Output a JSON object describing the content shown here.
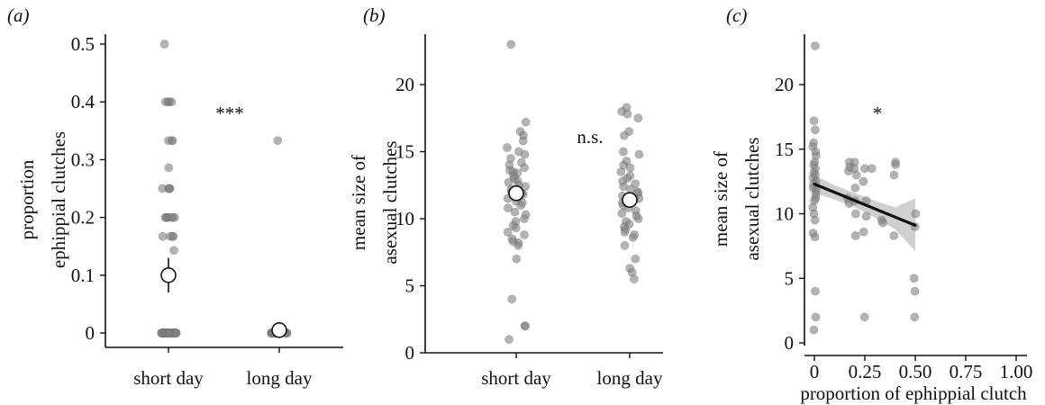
{
  "colors": {
    "point_fill": "#808080",
    "point_opacity": 0.6,
    "mean_fill": "#ffffff",
    "axis": "#111111",
    "regression_line": "#111111",
    "ci_band": "#c8c8c8"
  },
  "chart_data": [
    {
      "panel": "(a)",
      "type": "scatter",
      "jitter": true,
      "categories": [
        "short day",
        "long day"
      ],
      "ylabel": [
        "proportion",
        "ephippial clutches"
      ],
      "yticks": [
        0,
        0.1,
        0.2,
        0.3,
        0.4,
        0.5
      ],
      "ytick_labels": [
        "0",
        "0.1",
        "0.2",
        "0.3",
        "0.4",
        "0.5"
      ],
      "ylim": [
        0,
        0.53
      ],
      "significance": "***",
      "series": [
        {
          "category": "short day",
          "points": [
            0.5,
            0.4,
            0.4,
            0.4,
            0.4,
            0.333,
            0.333,
            0.333,
            0.286,
            0.25,
            0.25,
            0.25,
            0.25,
            0.2,
            0.2,
            0.2,
            0.2,
            0.2,
            0.2,
            0.2,
            0.167,
            0.167,
            0.167,
            0.167,
            0.143,
            0,
            0,
            0,
            0,
            0,
            0,
            0,
            0,
            0,
            0,
            0,
            0,
            0,
            0,
            0,
            0,
            0,
            0,
            0,
            0,
            0,
            0,
            0,
            0,
            0,
            0,
            0,
            0,
            0,
            0
          ],
          "mean": 0.1,
          "se": [
            0.07,
            0.13
          ]
        },
        {
          "category": "long day",
          "points": [
            0.333,
            0,
            0,
            0,
            0,
            0,
            0,
            0,
            0,
            0,
            0,
            0,
            0,
            0,
            0,
            0,
            0,
            0,
            0,
            0,
            0,
            0,
            0,
            0,
            0,
            0,
            0,
            0,
            0,
            0
          ],
          "mean": 0.005,
          "se": [
            0,
            0.01
          ]
        }
      ]
    },
    {
      "panel": "(b)",
      "type": "scatter",
      "jitter": true,
      "categories": [
        "short day",
        "long day"
      ],
      "ylabel": [
        "mean size of",
        "asexual clutches"
      ],
      "yticks": [
        0,
        5,
        10,
        15,
        20
      ],
      "ytick_labels": [
        "0",
        "5",
        "10",
        "15",
        "20"
      ],
      "ylim": [
        0,
        24.5
      ],
      "significance": "n.s.",
      "series": [
        {
          "category": "short day",
          "points": [
            23,
            17.2,
            16.5,
            16.2,
            15.8,
            15.3,
            15,
            14.8,
            14.5,
            14.2,
            14,
            13.8,
            13.6,
            13.5,
            13.4,
            13.2,
            13,
            12.8,
            12.7,
            12.5,
            12.4,
            12.2,
            12,
            11.9,
            11.8,
            11.6,
            11.5,
            11.3,
            11.2,
            11,
            10.8,
            10.5,
            10.3,
            10,
            9.8,
            9.5,
            9.3,
            9,
            8.8,
            8.5,
            8.3,
            8.2,
            8,
            7,
            4,
            2,
            2,
            1
          ],
          "mean": 11.9,
          "se": [
            11.4,
            12.4
          ]
        },
        {
          "category": "long day",
          "points": [
            18.3,
            18,
            17.8,
            17.5,
            16.5,
            16.2,
            15,
            14.8,
            14.3,
            14,
            13.8,
            13.5,
            13.2,
            13,
            12.8,
            12.6,
            12.4,
            12.2,
            12,
            11.9,
            11.7,
            11.5,
            11.4,
            11.2,
            11,
            10.8,
            10.6,
            10.4,
            10.2,
            10,
            9.8,
            9.6,
            9.4,
            9.2,
            9,
            8.8,
            8.6,
            8,
            7,
            6.3,
            6,
            5.5
          ],
          "mean": 11.4,
          "se": [
            10.9,
            11.9
          ]
        }
      ]
    },
    {
      "panel": "(c)",
      "type": "scatter",
      "xlabel": "proportion of ephippial clutch",
      "ylabel": [
        "mean size of",
        "asexual clutches"
      ],
      "xticks": [
        0,
        0.25,
        0.5,
        0.75,
        1.0
      ],
      "xtick_labels": [
        "0",
        "0.25",
        "0.50",
        "0.75",
        "1.00"
      ],
      "xlim": [
        -0.03,
        1.04
      ],
      "yticks": [
        0,
        5,
        10,
        15,
        20
      ],
      "ytick_labels": [
        "0",
        "5",
        "10",
        "15",
        "20"
      ],
      "ylim": [
        0,
        24.5
      ],
      "significance": "*",
      "points": [
        [
          0,
          23
        ],
        [
          0,
          17.2
        ],
        [
          0,
          16.5
        ],
        [
          0,
          15.5
        ],
        [
          0,
          15.2
        ],
        [
          0,
          14.8
        ],
        [
          0,
          14.5
        ],
        [
          0,
          14
        ],
        [
          0,
          13.8
        ],
        [
          0,
          13.5
        ],
        [
          0,
          13.2
        ],
        [
          0,
          13
        ],
        [
          0,
          12.8
        ],
        [
          0,
          12.5
        ],
        [
          0,
          12.3
        ],
        [
          0,
          12
        ],
        [
          0,
          11.8
        ],
        [
          0,
          11.5
        ],
        [
          0,
          11.2
        ],
        [
          0,
          11
        ],
        [
          0,
          10.5
        ],
        [
          0,
          10
        ],
        [
          0,
          9.5
        ],
        [
          0,
          8.5
        ],
        [
          0,
          8.2
        ],
        [
          0,
          4
        ],
        [
          0,
          2
        ],
        [
          0,
          1
        ],
        [
          0.167,
          14
        ],
        [
          0.167,
          13.6
        ],
        [
          0.167,
          13.3
        ],
        [
          0.167,
          11.2
        ],
        [
          0.167,
          10.8
        ],
        [
          0.2,
          14
        ],
        [
          0.2,
          13.5
        ],
        [
          0.2,
          13
        ],
        [
          0.2,
          12
        ],
        [
          0.2,
          11
        ],
        [
          0.2,
          10
        ],
        [
          0.2,
          8.3
        ],
        [
          0.25,
          13.5
        ],
        [
          0.25,
          12.5
        ],
        [
          0.25,
          11
        ],
        [
          0.25,
          9.8
        ],
        [
          0.25,
          8.6
        ],
        [
          0.25,
          2
        ],
        [
          0.286,
          13.5
        ],
        [
          0.333,
          9.5
        ],
        [
          0.333,
          9.3
        ],
        [
          0.4,
          14
        ],
        [
          0.4,
          13.8
        ],
        [
          0.4,
          13
        ],
        [
          0.4,
          8.3
        ],
        [
          0.5,
          10
        ],
        [
          0.5,
          9
        ],
        [
          0.5,
          5
        ],
        [
          0.5,
          4
        ],
        [
          0.5,
          2
        ]
      ],
      "regression": {
        "x": [
          0,
          0.5
        ],
        "y": [
          12.3,
          9.1
        ]
      },
      "ci_band": {
        "x": [
          0,
          0.1,
          0.2,
          0.3,
          0.4,
          0.5
        ],
        "lower": [
          11.6,
          11.1,
          10.5,
          9.7,
          8.8,
          7.1
        ],
        "upper": [
          13.0,
          12.2,
          11.6,
          11.0,
          10.5,
          11.2
        ]
      }
    }
  ]
}
